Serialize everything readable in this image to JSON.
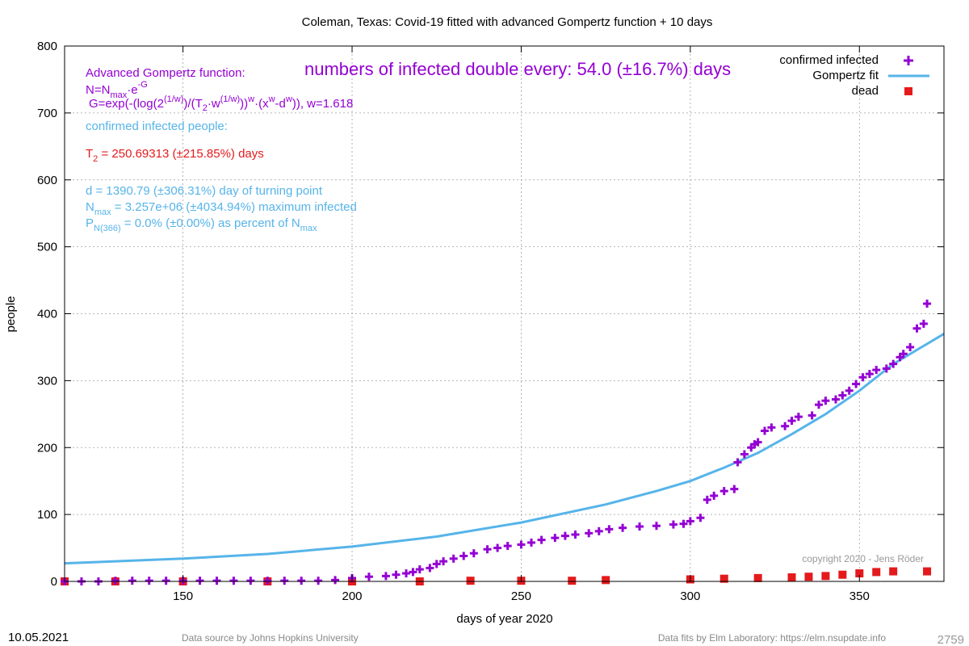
{
  "chart_data": {
    "type": "scatter",
    "title": "Coleman,  Texas: Covid-19 fitted with advanced Gompertz function + 10 days",
    "xlabel": "days of year 2020",
    "ylabel": "people",
    "xlim": [
      115,
      375
    ],
    "ylim": [
      0,
      800
    ],
    "x_ticks": [
      150,
      200,
      250,
      300,
      350
    ],
    "y_ticks": [
      0,
      100,
      200,
      300,
      400,
      500,
      600,
      700,
      800
    ],
    "grid": true,
    "legend_position": "top-right",
    "legend": [
      "confirmed infected",
      "Gompertz fit",
      "dead"
    ],
    "series": [
      {
        "name": "confirmed infected",
        "color": "#9400d3",
        "marker": "plus",
        "points": [
          [
            115,
            0
          ],
          [
            120,
            0
          ],
          [
            125,
            0
          ],
          [
            130,
            1
          ],
          [
            135,
            1
          ],
          [
            140,
            1
          ],
          [
            145,
            1
          ],
          [
            150,
            1
          ],
          [
            155,
            1
          ],
          [
            160,
            1
          ],
          [
            165,
            1
          ],
          [
            170,
            1
          ],
          [
            175,
            1
          ],
          [
            180,
            1
          ],
          [
            185,
            1
          ],
          [
            190,
            1
          ],
          [
            195,
            2
          ],
          [
            200,
            5
          ],
          [
            205,
            7
          ],
          [
            210,
            8
          ],
          [
            213,
            10
          ],
          [
            216,
            12
          ],
          [
            218,
            14
          ],
          [
            220,
            18
          ],
          [
            223,
            20
          ],
          [
            225,
            26
          ],
          [
            227,
            30
          ],
          [
            230,
            34
          ],
          [
            233,
            38
          ],
          [
            236,
            42
          ],
          [
            240,
            48
          ],
          [
            243,
            50
          ],
          [
            246,
            53
          ],
          [
            250,
            55
          ],
          [
            253,
            58
          ],
          [
            256,
            62
          ],
          [
            260,
            65
          ],
          [
            263,
            68
          ],
          [
            266,
            70
          ],
          [
            270,
            72
          ],
          [
            273,
            75
          ],
          [
            276,
            78
          ],
          [
            280,
            80
          ],
          [
            285,
            82
          ],
          [
            290,
            83
          ],
          [
            295,
            85
          ],
          [
            298,
            86
          ],
          [
            300,
            90
          ],
          [
            303,
            95
          ],
          [
            305,
            122
          ],
          [
            307,
            128
          ],
          [
            310,
            135
          ],
          [
            313,
            138
          ],
          [
            314,
            178
          ],
          [
            316,
            190
          ],
          [
            318,
            200
          ],
          [
            319,
            205
          ],
          [
            320,
            208
          ],
          [
            322,
            225
          ],
          [
            324,
            230
          ],
          [
            328,
            232
          ],
          [
            330,
            240
          ],
          [
            332,
            246
          ],
          [
            336,
            248
          ],
          [
            338,
            264
          ],
          [
            340,
            270
          ],
          [
            343,
            272
          ],
          [
            345,
            278
          ],
          [
            347,
            285
          ],
          [
            349,
            295
          ],
          [
            351,
            305
          ],
          [
            353,
            310
          ],
          [
            355,
            316
          ],
          [
            358,
            318
          ],
          [
            360,
            325
          ],
          [
            362,
            335
          ],
          [
            363,
            340
          ],
          [
            365,
            350
          ],
          [
            367,
            378
          ],
          [
            369,
            385
          ],
          [
            370,
            415
          ]
        ]
      },
      {
        "name": "Gompertz fit",
        "color": "#56b4e9",
        "points": [
          [
            115,
            27
          ],
          [
            130,
            30
          ],
          [
            150,
            34
          ],
          [
            175,
            41
          ],
          [
            200,
            52
          ],
          [
            225,
            67
          ],
          [
            250,
            88
          ],
          [
            275,
            115
          ],
          [
            290,
            135
          ],
          [
            300,
            150
          ],
          [
            310,
            170
          ],
          [
            320,
            192
          ],
          [
            330,
            220
          ],
          [
            340,
            250
          ],
          [
            350,
            285
          ],
          [
            360,
            325
          ],
          [
            375,
            370
          ]
        ]
      },
      {
        "name": "dead",
        "color": "#e41a1c",
        "marker": "square",
        "points": [
          [
            115,
            0
          ],
          [
            130,
            0
          ],
          [
            150,
            0
          ],
          [
            175,
            0
          ],
          [
            200,
            0
          ],
          [
            220,
            0
          ],
          [
            235,
            1
          ],
          [
            250,
            1
          ],
          [
            265,
            1
          ],
          [
            275,
            2
          ],
          [
            300,
            3
          ],
          [
            310,
            4
          ],
          [
            320,
            5
          ],
          [
            330,
            6
          ],
          [
            335,
            7
          ],
          [
            340,
            8
          ],
          [
            345,
            10
          ],
          [
            350,
            12
          ],
          [
            355,
            14
          ],
          [
            360,
            15
          ],
          [
            370,
            15
          ]
        ]
      }
    ],
    "annotations": {
      "headline": "numbers of infected double every: 54.0 (±16.7%) days",
      "gompertz_title": "Advanced Gompertz function:",
      "formula_n_main": "N=N",
      "formula_n_sub": "max",
      "formula_n_mid": "·e",
      "formula_n_sup": "-G",
      "formula_g1": "G=exp(-(log(2",
      "formula_g_sup1": "(1/w)",
      "formula_g2": ")/(T",
      "formula_g_sub2": "2",
      "formula_g3": "·w",
      "formula_g_sup3": "(1/w)",
      "formula_g4": "))",
      "formula_g_sup4": "w",
      "formula_g5": "·(x",
      "formula_g_sup5": "w",
      "formula_g6": "-d",
      "formula_g_sup6": "w",
      "formula_g7": ")), w=1.618",
      "confirmed_label": "confirmed infected people:",
      "t2_main": "T",
      "t2_sub": "2",
      "t2_rest": " = 250.69313 (±215.85%) days",
      "d_line": "d = 1390.79 (±306.31%) day of turning point",
      "nmax_main": "N",
      "nmax_sub": "max",
      "nmax_rest": " = 3.257e+06 (±4034.94%) maximum infected",
      "p_main": "P",
      "p_sub": "N(366)",
      "p_rest": " = 0.0% (±0.00%) as percent of N",
      "p_sub2": "max",
      "copyright": "copyright 2020 - Jens Röder"
    }
  },
  "footer": {
    "date": "10.05.2021",
    "source": "Data source by Johns Hopkins University",
    "fits": "Data fits by Elm Laboratory: https://elm.nsupdate.info",
    "number": "2759"
  },
  "colors": {
    "purple": "#9400d3",
    "blue": "#56b4e9",
    "red": "#e41a1c",
    "grid": "#a0a0a0"
  }
}
